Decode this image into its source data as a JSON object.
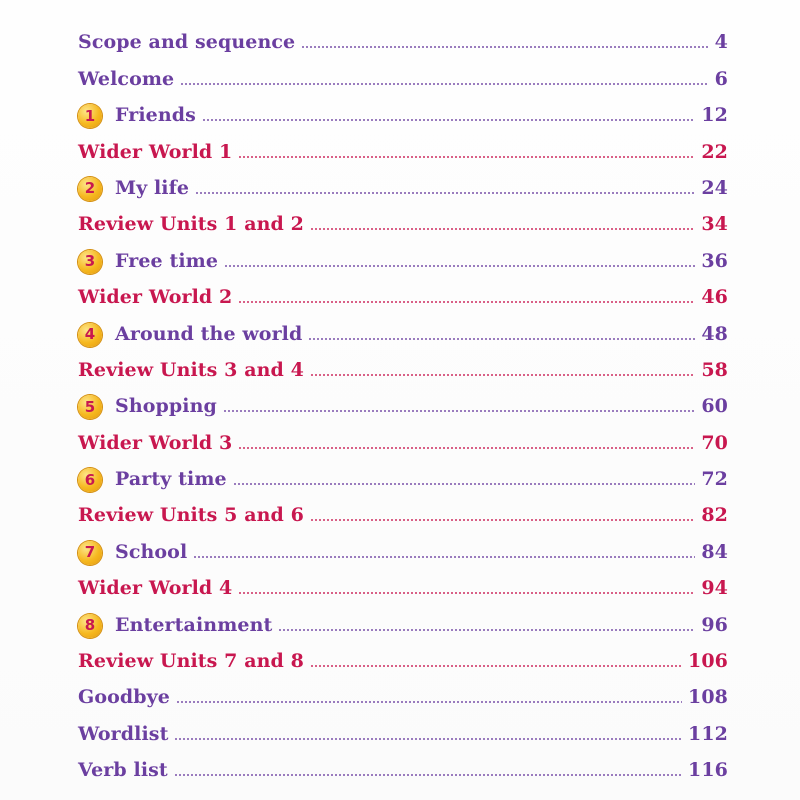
{
  "toc": {
    "entries": [
      {
        "title": "Scope and sequence",
        "page": "4",
        "color": "#6b3fa0"
      },
      {
        "title": "Welcome",
        "page": "6",
        "color": "#6b3fa0"
      },
      {
        "unit": "1",
        "title": "Friends",
        "page": "12",
        "color": "#6b3fa0"
      },
      {
        "title": "Wider World 1",
        "page": "22",
        "color": "#c8174f"
      },
      {
        "unit": "2",
        "title": "My life",
        "page": "24",
        "color": "#6b3fa0"
      },
      {
        "title": "Review Units 1 and 2",
        "page": "34",
        "color": "#c8174f"
      },
      {
        "unit": "3",
        "title": "Free time",
        "page": "36",
        "color": "#6b3fa0"
      },
      {
        "title": "Wider World 2",
        "page": "46",
        "color": "#c8174f"
      },
      {
        "unit": "4",
        "title": "Around the world",
        "page": "48",
        "color": "#6b3fa0"
      },
      {
        "title": "Review Units 3 and 4",
        "page": "58",
        "color": "#c8174f"
      },
      {
        "unit": "5",
        "title": "Shopping",
        "page": "60",
        "color": "#6b3fa0"
      },
      {
        "title": "Wider World 3",
        "page": "70",
        "color": "#c8174f"
      },
      {
        "unit": "6",
        "title": "Party time",
        "page": "72",
        "color": "#6b3fa0"
      },
      {
        "title": "Review Units 5 and 6",
        "page": "82",
        "color": "#c8174f"
      },
      {
        "unit": "7",
        "title": "School",
        "page": "84",
        "color": "#6b3fa0"
      },
      {
        "title": "Wider World 4",
        "page": "94",
        "color": "#c8174f"
      },
      {
        "unit": "8",
        "title": "Entertainment",
        "page": "96",
        "color": "#6b3fa0"
      },
      {
        "title": "Review Units 7 and 8",
        "page": "106",
        "color": "#c8174f"
      },
      {
        "title": "Goodbye",
        "page": "108",
        "color": "#6b3fa0"
      },
      {
        "title": "Wordlist",
        "page": "112",
        "color": "#6b3fa0"
      },
      {
        "title": "Verb list",
        "page": "116",
        "color": "#6b3fa0"
      }
    ]
  },
  "colors": {
    "unit_entry": "#6b3fa0",
    "section_entry": "#c8174f",
    "unit_badge": "#f6b81f",
    "unit_badge_number": "#c8174f"
  },
  "icons": {
    "unit_badge": "numbered-circle-badge-icon"
  }
}
